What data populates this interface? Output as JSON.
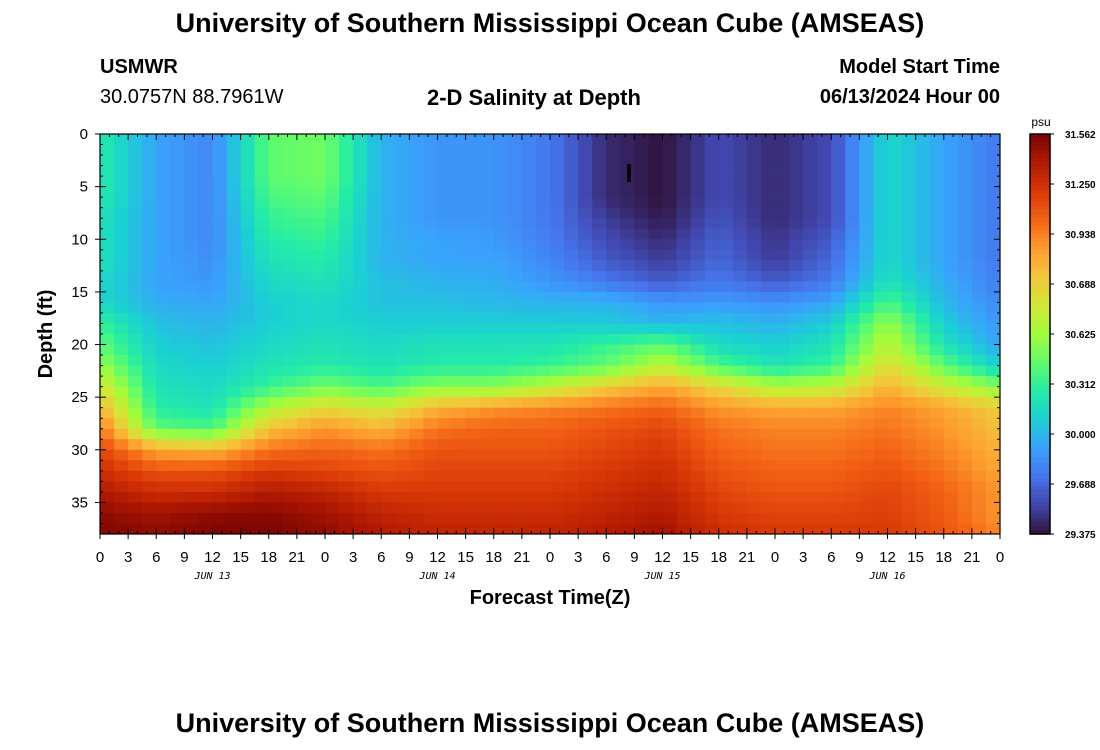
{
  "header": {
    "title": "University of Southern Mississippi Ocean Cube (AMSEAS)",
    "station_id": "USMWR",
    "station_coords": "30.0757N  88.7961W",
    "chart_title": "2-D Salinity at Depth",
    "model_start_label": "Model Start Time",
    "model_start_value": "06/13/2024 Hour 00"
  },
  "footer": {
    "title": "University of Southern Mississippi Ocean Cube (AMSEAS)"
  },
  "chart_data": {
    "type": "heatmap",
    "xlabel": "Forecast Time(Z)",
    "ylabel": "Depth (ft)",
    "x_ticks": [
      "0",
      "3",
      "6",
      "9",
      "12",
      "15",
      "18",
      "21",
      "0",
      "3",
      "6",
      "9",
      "12",
      "15",
      "18",
      "21",
      "0",
      "3",
      "6",
      "9",
      "12",
      "15",
      "18",
      "21",
      "0",
      "3",
      "6",
      "9",
      "12",
      "15",
      "18",
      "21",
      "0"
    ],
    "x_range_hours": [
      0,
      96
    ],
    "date_labels": [
      {
        "label": "JUN 13",
        "hour": 12
      },
      {
        "label": "JUN 14",
        "hour": 36
      },
      {
        "label": "JUN 15",
        "hour": 60
      },
      {
        "label": "JUN 16",
        "hour": 84
      }
    ],
    "y_ticks": [
      "0",
      "5",
      "10",
      "15",
      "20",
      "25",
      "30",
      "35"
    ],
    "y_range_ft": [
      0,
      38
    ],
    "y_inverted": true,
    "colorbar": {
      "unit": "psu",
      "min": 29.375,
      "max": 31.562,
      "tick_labels": [
        "31.562",
        "31.250",
        "30.938",
        "30.688",
        "30.625",
        "30.312",
        "30.000",
        "29.688",
        "29.375"
      ],
      "tick_values": [
        31.562,
        31.25,
        30.938,
        30.688,
        30.625,
        30.312,
        30.0,
        29.688,
        29.375
      ],
      "colormap": [
        "#30123b",
        "#4145ab",
        "#4675ed",
        "#39a2fc",
        "#1bcfd4",
        "#24eca6",
        "#61fc6c",
        "#a4fc3b",
        "#d1e834",
        "#f3c63a",
        "#fe9b2d",
        "#f36315",
        "#d93806",
        "#b11901",
        "#7a0403"
      ]
    },
    "depth_profile_ft": [
      0,
      2,
      4,
      6,
      8,
      10,
      12,
      14,
      16,
      18,
      20,
      22,
      24,
      26,
      28,
      30,
      32,
      34,
      36,
      38
    ],
    "time_hours": [
      0,
      6,
      12,
      18,
      24,
      30,
      36,
      42,
      48,
      54,
      60,
      66,
      72,
      78,
      84,
      90,
      96
    ],
    "salinity_psu": [
      [
        30.15,
        29.85,
        29.75,
        30.3,
        30.35,
        29.9,
        29.8,
        29.8,
        29.7,
        29.45,
        29.38,
        29.55,
        29.45,
        29.55,
        30.05,
        29.85,
        29.7
      ],
      [
        30.15,
        29.85,
        29.75,
        30.3,
        30.35,
        29.9,
        29.8,
        29.8,
        29.7,
        29.45,
        29.38,
        29.55,
        29.45,
        29.55,
        30.05,
        29.85,
        29.7
      ],
      [
        30.15,
        29.85,
        29.75,
        30.3,
        30.35,
        29.9,
        29.8,
        29.8,
        29.7,
        29.45,
        29.38,
        29.55,
        29.45,
        29.55,
        30.05,
        29.85,
        29.7
      ],
      [
        30.15,
        29.85,
        29.75,
        30.25,
        30.3,
        29.9,
        29.8,
        29.8,
        29.7,
        29.45,
        29.38,
        29.55,
        29.45,
        29.55,
        30.05,
        29.85,
        29.7
      ],
      [
        30.1,
        29.85,
        29.75,
        30.2,
        30.25,
        29.9,
        29.8,
        29.8,
        29.7,
        29.5,
        29.4,
        29.58,
        29.45,
        29.55,
        30.05,
        29.85,
        29.7
      ],
      [
        30.1,
        29.85,
        29.75,
        30.15,
        30.2,
        29.9,
        29.85,
        29.82,
        29.72,
        29.55,
        29.45,
        29.62,
        29.48,
        29.6,
        30.05,
        29.85,
        29.7
      ],
      [
        30.1,
        29.85,
        29.78,
        30.1,
        30.15,
        29.9,
        29.85,
        29.85,
        29.75,
        29.6,
        29.5,
        29.65,
        29.5,
        29.65,
        30.05,
        29.85,
        29.7
      ],
      [
        30.05,
        29.85,
        29.8,
        30.05,
        30.1,
        29.95,
        29.9,
        29.88,
        29.8,
        29.7,
        29.6,
        29.7,
        29.6,
        29.7,
        30.1,
        29.88,
        29.72
      ],
      [
        30.05,
        29.88,
        29.85,
        30.0,
        30.05,
        29.95,
        29.95,
        29.92,
        29.9,
        29.9,
        29.8,
        29.82,
        29.78,
        29.85,
        30.25,
        29.92,
        29.75
      ],
      [
        30.2,
        29.95,
        29.9,
        30.0,
        30.05,
        30.0,
        30.0,
        30.0,
        30.0,
        29.98,
        29.92,
        29.95,
        29.9,
        30.0,
        30.45,
        30.0,
        29.8
      ],
      [
        30.3,
        30.0,
        29.95,
        30.05,
        30.1,
        30.05,
        30.1,
        30.1,
        30.1,
        30.2,
        30.3,
        30.05,
        30.0,
        30.1,
        30.55,
        30.1,
        29.85
      ],
      [
        30.45,
        30.05,
        30.0,
        30.1,
        30.15,
        30.1,
        30.15,
        30.15,
        30.2,
        30.3,
        30.55,
        30.25,
        30.1,
        30.2,
        30.7,
        30.3,
        30.0
      ],
      [
        30.65,
        30.1,
        30.05,
        30.2,
        30.35,
        30.25,
        30.4,
        30.4,
        30.55,
        30.75,
        30.9,
        30.7,
        30.5,
        30.55,
        30.85,
        30.6,
        30.4
      ],
      [
        30.85,
        30.15,
        30.1,
        30.5,
        30.7,
        30.6,
        30.85,
        30.95,
        31.0,
        31.05,
        31.1,
        30.95,
        30.9,
        30.9,
        31.0,
        30.9,
        30.75
      ],
      [
        31.05,
        30.3,
        30.25,
        30.8,
        30.95,
        30.85,
        31.05,
        31.1,
        31.1,
        31.15,
        31.2,
        31.05,
        31.0,
        31.0,
        31.05,
        30.95,
        30.8
      ],
      [
        31.2,
        30.9,
        30.85,
        31.05,
        31.1,
        31.05,
        31.15,
        31.15,
        31.15,
        31.2,
        31.25,
        31.1,
        31.05,
        31.05,
        31.1,
        31.0,
        30.85
      ],
      [
        31.3,
        31.15,
        31.15,
        31.25,
        31.2,
        31.15,
        31.2,
        31.2,
        31.2,
        31.25,
        31.3,
        31.15,
        31.1,
        31.1,
        31.15,
        31.05,
        30.9
      ],
      [
        31.4,
        31.3,
        31.3,
        31.4,
        31.35,
        31.25,
        31.25,
        31.25,
        31.25,
        31.3,
        31.35,
        31.2,
        31.15,
        31.15,
        31.2,
        31.1,
        30.95
      ],
      [
        31.5,
        31.45,
        31.5,
        31.52,
        31.45,
        31.35,
        31.3,
        31.3,
        31.3,
        31.35,
        31.4,
        31.25,
        31.2,
        31.2,
        31.22,
        31.12,
        30.95
      ],
      [
        31.55,
        31.5,
        31.55,
        31.56,
        31.5,
        31.4,
        31.35,
        31.35,
        31.35,
        31.4,
        31.45,
        31.3,
        31.25,
        31.25,
        31.25,
        31.15,
        31.0
      ]
    ],
    "annotations": [
      "I"
    ]
  }
}
